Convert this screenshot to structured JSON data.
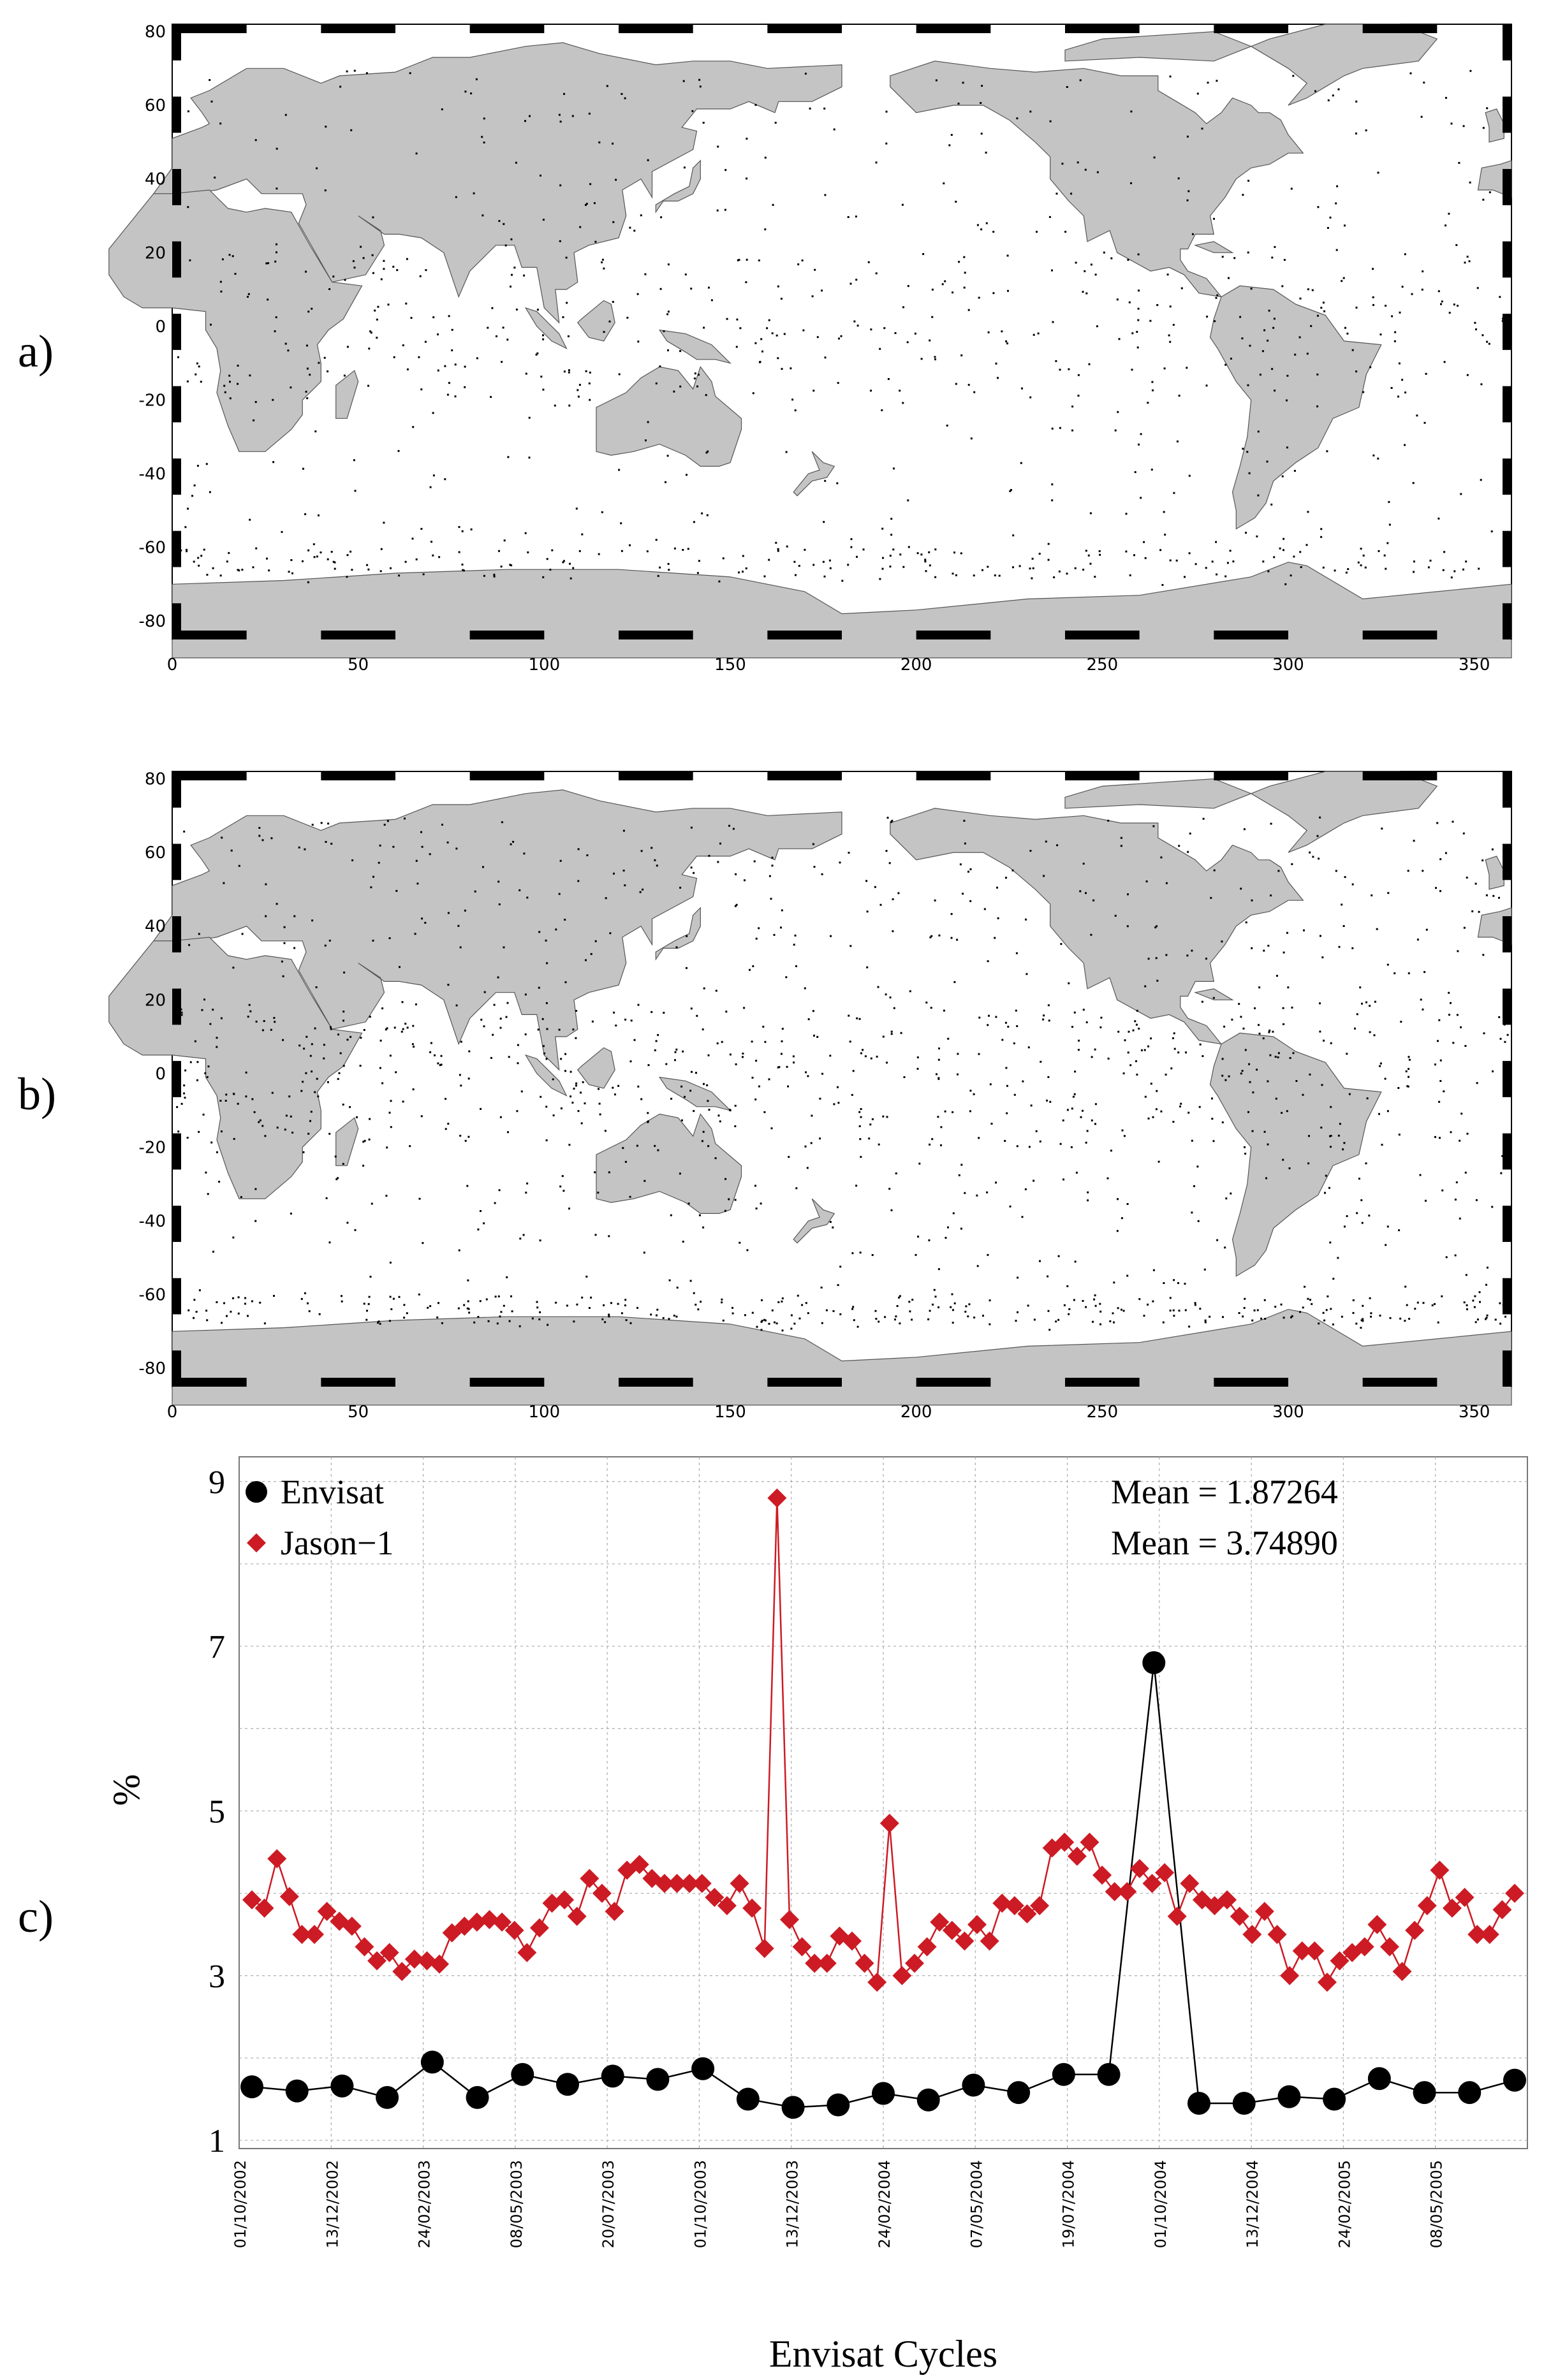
{
  "panels": {
    "a": {
      "label": "a)"
    },
    "b": {
      "label": "b)"
    },
    "c": {
      "label": "c)"
    }
  },
  "maps": {
    "x_ticks": [
      "0",
      "50",
      "100",
      "150",
      "200",
      "250",
      "300",
      "350"
    ],
    "y_ticks": [
      "80",
      "60",
      "40",
      "20",
      "0",
      "-20",
      "-40",
      "-60",
      "-80"
    ],
    "land_color": "#c4c4c4",
    "point_color": "#000000"
  },
  "chart_data": [
    {
      "type": "scatter",
      "panel": "a",
      "xlim": [
        0,
        360
      ],
      "ylim": [
        -85,
        82
      ],
      "xticks": [
        0,
        50,
        100,
        150,
        200,
        250,
        300,
        350
      ],
      "yticks": [
        80,
        60,
        40,
        20,
        0,
        -20,
        -40,
        -60,
        -80
      ],
      "note_values": "point cloud of detected outlier locations (lon, lat)"
    },
    {
      "type": "scatter",
      "panel": "b",
      "xlim": [
        0,
        360
      ],
      "ylim": [
        -85,
        82
      ],
      "xticks": [
        0,
        50,
        100,
        150,
        200,
        250,
        300,
        350
      ],
      "yticks": [
        80,
        60,
        40,
        20,
        0,
        -20,
        -40,
        -60,
        -80
      ]
    },
    {
      "type": "line",
      "panel": "c",
      "xlabel": "Envisat Cycles",
      "ylabel": "%",
      "ylim": [
        0.9,
        9.3
      ],
      "yticks": [
        "1",
        "3",
        "5",
        "7",
        "9"
      ],
      "date_ticks": [
        "01/10/2002",
        "13/12/2002",
        "24/02/2003",
        "08/05/2003",
        "20/07/2003",
        "01/10/2003",
        "13/12/2003",
        "24/02/2004",
        "07/05/2004",
        "19/07/2004",
        "01/10/2004",
        "13/12/2004",
        "24/02/2005",
        "08/05/2005"
      ],
      "series": [
        {
          "name": "Envisat",
          "color": "#000000",
          "marker": "circle",
          "mean_label": "Mean = 1.87264",
          "values": [
            1.65,
            1.6,
            1.66,
            1.52,
            1.95,
            1.52,
            1.8,
            1.68,
            1.78,
            1.74,
            1.87,
            1.5,
            1.4,
            1.43,
            1.57,
            1.49,
            1.67,
            1.58,
            1.8,
            1.8,
            6.8,
            1.45,
            1.45,
            1.53,
            1.5,
            1.75,
            1.58,
            1.58,
            1.73
          ]
        },
        {
          "name": "Jason−1",
          "color": "#cc1b24",
          "marker": "diamond",
          "mean_label": "Mean = 3.74890",
          "values": [
            3.92,
            3.82,
            4.42,
            3.96,
            3.5,
            3.5,
            3.78,
            3.66,
            3.6,
            3.35,
            3.18,
            3.28,
            3.05,
            3.2,
            3.18,
            3.14,
            3.52,
            3.6,
            3.65,
            3.68,
            3.65,
            3.55,
            3.28,
            3.58,
            3.88,
            3.92,
            3.72,
            4.18,
            4.0,
            3.78,
            4.28,
            4.35,
            4.18,
            4.12,
            4.12,
            4.12,
            4.12,
            3.95,
            3.85,
            4.12,
            3.82,
            3.33,
            8.8,
            3.68,
            3.35,
            3.15,
            3.15,
            3.48,
            3.42,
            3.15,
            2.92,
            4.85,
            3.0,
            3.15,
            3.35,
            3.65,
            3.55,
            3.42,
            3.62,
            3.42,
            3.88,
            3.85,
            3.75,
            3.85,
            4.55,
            4.62,
            4.45,
            4.62,
            4.22,
            4.02,
            4.02,
            4.3,
            4.12,
            4.25,
            3.72,
            4.12,
            3.92,
            3.85,
            3.92,
            3.72,
            3.5,
            3.78,
            3.5,
            3.0,
            3.3,
            3.3,
            2.92,
            3.18,
            3.28,
            3.35,
            3.62,
            3.35,
            3.05,
            3.55,
            3.85,
            4.28,
            3.82,
            3.95,
            3.5,
            3.5,
            3.8,
            4.0
          ]
        }
      ]
    }
  ]
}
